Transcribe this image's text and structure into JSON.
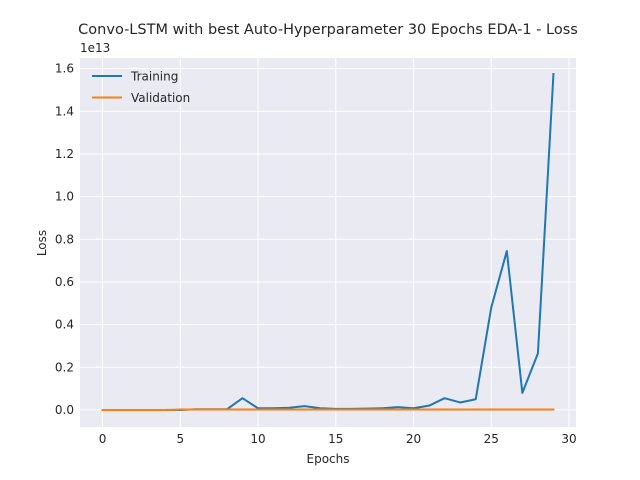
{
  "chart_data": {
    "type": "line",
    "title": "Convo-LSTM with best Auto-Hyperparameter 30 Epochs EDA-1 - Loss",
    "xlabel": "Epochs",
    "ylabel": "Loss",
    "y_scale_label": "1e13",
    "y_scale_factor": 10000000000000,
    "xlim": [
      -1.45,
      30.45
    ],
    "ylim": [
      -0.08,
      1.65
    ],
    "x_ticks": [
      0,
      5,
      10,
      15,
      20,
      25,
      30
    ],
    "y_ticks": [
      0.0,
      0.2,
      0.4,
      0.6,
      0.8,
      1.0,
      1.2,
      1.4,
      1.6
    ],
    "y_tick_labels": [
      "0.0",
      "0.2",
      "0.4",
      "0.6",
      "0.8",
      "1.0",
      "1.2",
      "1.4",
      "1.6"
    ],
    "grid": true,
    "legend_position": "top-left",
    "x": [
      0,
      1,
      2,
      3,
      4,
      5,
      6,
      7,
      8,
      9,
      10,
      11,
      12,
      13,
      14,
      15,
      16,
      17,
      18,
      19,
      20,
      21,
      22,
      23,
      24,
      25,
      26,
      27,
      28,
      29
    ],
    "series": [
      {
        "name": "Training",
        "color": "#1f77b4",
        "values": [
          0.0,
          0.0,
          0.0,
          0.0,
          0.0,
          0.0,
          0.003,
          0.003,
          0.003,
          0.055,
          0.008,
          0.008,
          0.01,
          0.018,
          0.008,
          0.005,
          0.005,
          0.006,
          0.008,
          0.013,
          0.008,
          0.02,
          0.055,
          0.035,
          0.05,
          0.48,
          0.745,
          0.08,
          0.265,
          1.575
        ]
      },
      {
        "name": "Validation",
        "color": "#ff7f0e",
        "values": [
          0.0,
          0.0,
          0.0,
          0.0,
          0.0,
          0.002,
          0.002,
          0.002,
          0.002,
          0.002,
          0.002,
          0.002,
          0.002,
          0.002,
          0.002,
          0.002,
          0.002,
          0.002,
          0.002,
          0.002,
          0.002,
          0.002,
          0.002,
          0.002,
          0.002,
          0.002,
          0.002,
          0.002,
          0.002,
          0.002
        ]
      }
    ]
  }
}
